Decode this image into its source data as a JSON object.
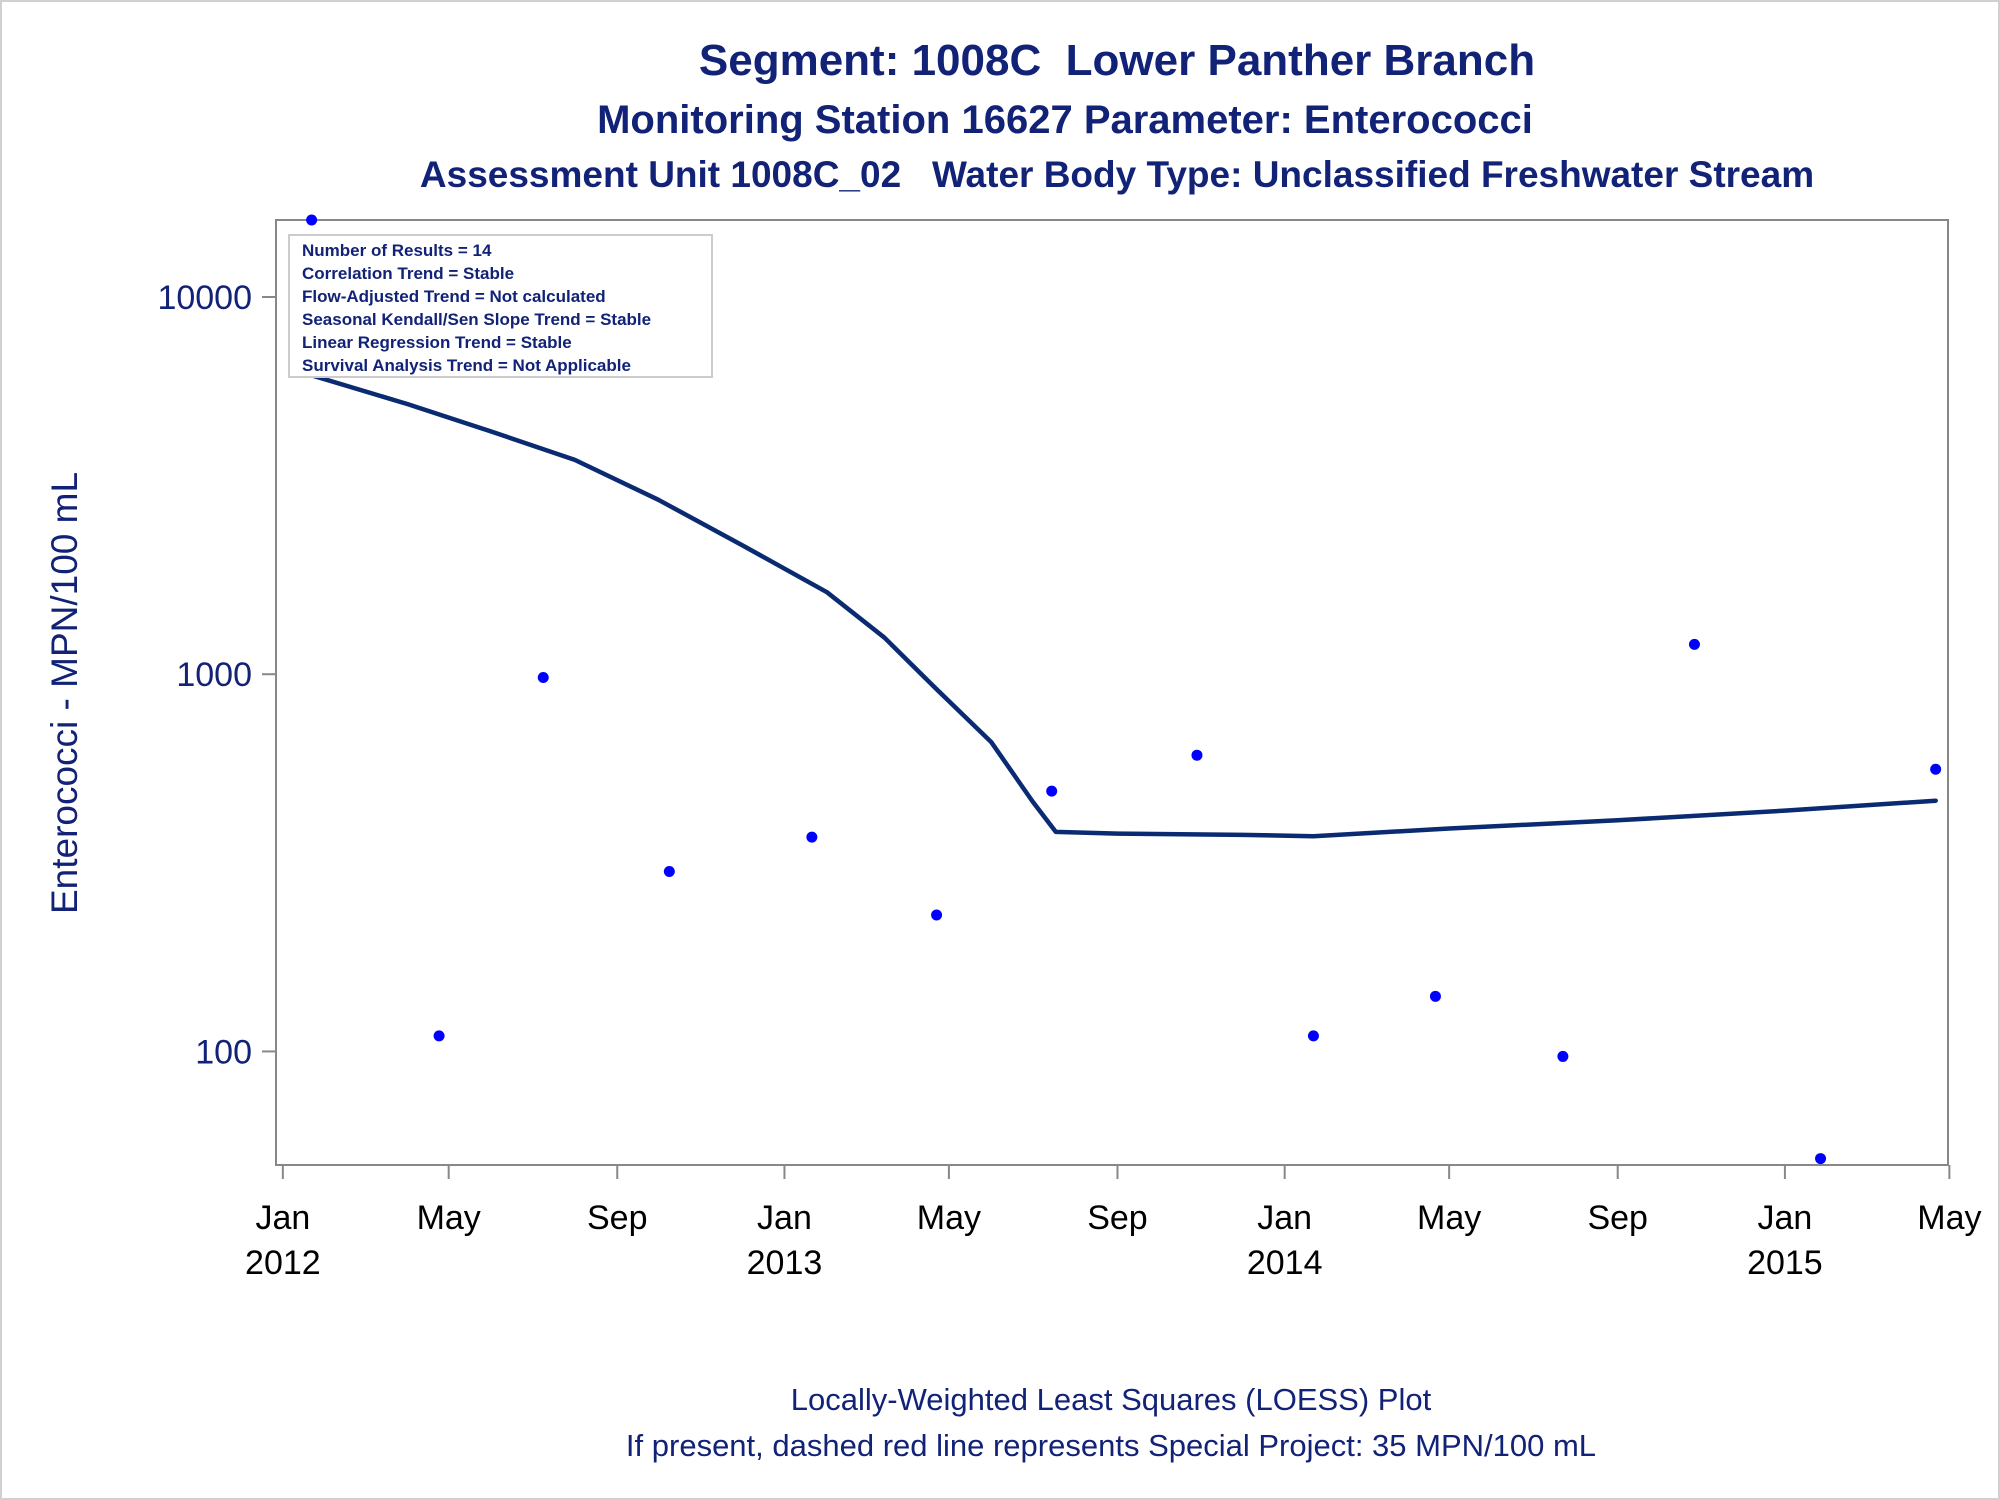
{
  "titles": {
    "line1": "Segment: 1008C  Lower Panther Branch",
    "line2": "Monitoring Station 16627 Parameter: Enterococci",
    "line3": "Assessment Unit 1008C_02   Water Body Type: Unclassified Freshwater Stream"
  },
  "footnotes": {
    "line1": "Locally-Weighted Least Squares (LOESS) Plot",
    "line2": "If present, dashed red line represents Special Project: 35 MPN/100 mL"
  },
  "colors": {
    "points": "#0000ff",
    "loess": "#0a2a72",
    "text": "#112277",
    "axis": "#888888"
  },
  "chart_data": {
    "type": "scatter",
    "ylabel": "Enterococci - MPN/100 mL",
    "xlabel": "",
    "y_scale": "log",
    "ylim": [
      50,
      16000
    ],
    "y_ticks": [
      {
        "value": 100,
        "label": "100"
      },
      {
        "value": 1000,
        "label": "1000"
      },
      {
        "value": 10000,
        "label": "10000"
      }
    ],
    "xlim": [
      "2011-12-27",
      "2015-04-30"
    ],
    "x_ticks": [
      {
        "date": "2012-01-01",
        "line1": "Jan",
        "line2": "2012"
      },
      {
        "date": "2012-05-01",
        "line1": "May",
        "line2": ""
      },
      {
        "date": "2012-09-01",
        "line1": "Sep",
        "line2": ""
      },
      {
        "date": "2013-01-01",
        "line1": "Jan",
        "line2": "2013"
      },
      {
        "date": "2013-05-01",
        "line1": "May",
        "line2": ""
      },
      {
        "date": "2013-09-01",
        "line1": "Sep",
        "line2": ""
      },
      {
        "date": "2014-01-01",
        "line1": "Jan",
        "line2": "2014"
      },
      {
        "date": "2014-05-01",
        "line1": "May",
        "line2": ""
      },
      {
        "date": "2014-09-01",
        "line1": "Sep",
        "line2": ""
      },
      {
        "date": "2015-01-01",
        "line1": "Jan",
        "line2": "2015"
      },
      {
        "date": "2015-05-01",
        "line1": "May",
        "line2": ""
      }
    ],
    "legend_position": "top-left",
    "legend_lines": [
      "Number of Results = 14",
      "Correlation Trend = Stable",
      "Flow-Adjusted Trend = Not calculated",
      "Seasonal Kendall/Sen Slope Trend = Stable",
      "Linear Regression Trend = Stable",
      "Survival Analysis Trend = Not Applicable"
    ],
    "series": [
      {
        "type": "scatter",
        "points": [
          {
            "x": "2012-01-22",
            "y": 16000
          },
          {
            "x": "2012-04-24",
            "y": 110
          },
          {
            "x": "2012-07-09",
            "y": 980
          },
          {
            "x": "2012-10-09",
            "y": 300
          },
          {
            "x": "2013-01-21",
            "y": 370
          },
          {
            "x": "2013-04-22",
            "y": 230
          },
          {
            "x": "2013-07-15",
            "y": 490
          },
          {
            "x": "2013-10-29",
            "y": 610
          },
          {
            "x": "2014-01-22",
            "y": 110
          },
          {
            "x": "2014-04-21",
            "y": 140
          },
          {
            "x": "2014-07-23",
            "y": 97
          },
          {
            "x": "2014-10-27",
            "y": 1200
          },
          {
            "x": "2015-01-27",
            "y": 52
          },
          {
            "x": "2015-04-21",
            "y": 560
          }
        ]
      },
      {
        "type": "line",
        "points": [
          {
            "x": "2012-01-22",
            "y": 6200
          },
          {
            "x": "2012-04-01",
            "y": 5200
          },
          {
            "x": "2012-06-01",
            "y": 4400
          },
          {
            "x": "2012-08-01",
            "y": 3700
          },
          {
            "x": "2012-10-01",
            "y": 2900
          },
          {
            "x": "2012-12-01",
            "y": 2200
          },
          {
            "x": "2013-02-01",
            "y": 1650
          },
          {
            "x": "2013-03-15",
            "y": 1250
          },
          {
            "x": "2013-04-21",
            "y": 920
          },
          {
            "x": "2013-06-01",
            "y": 660
          },
          {
            "x": "2013-07-01",
            "y": 460
          },
          {
            "x": "2013-07-18",
            "y": 382
          },
          {
            "x": "2013-09-01",
            "y": 378
          },
          {
            "x": "2013-12-01",
            "y": 375
          },
          {
            "x": "2014-01-22",
            "y": 372
          },
          {
            "x": "2014-05-01",
            "y": 390
          },
          {
            "x": "2014-09-01",
            "y": 410
          },
          {
            "x": "2015-01-01",
            "y": 435
          },
          {
            "x": "2015-04-21",
            "y": 462
          }
        ]
      }
    ]
  }
}
